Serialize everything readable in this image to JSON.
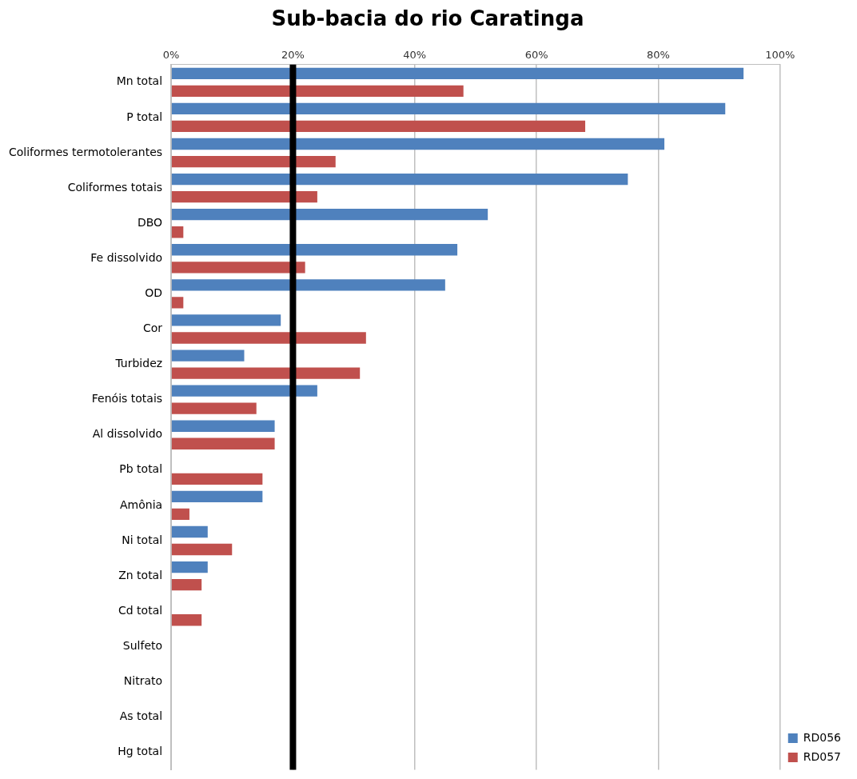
{
  "chart_data": {
    "type": "bar",
    "orientation": "horizontal",
    "title": "Sub-bacia do rio Caratinga",
    "categories": [
      "Mn total",
      "P total",
      "Coliformes termotolerantes",
      "Coliformes totais",
      "DBO",
      "Fe dissolvido",
      "OD",
      "Cor",
      "Turbidez",
      "Fenóis totais",
      "Al dissolvido",
      "Pb total",
      "Amônia",
      "Ni total",
      "Zn total",
      "Cd total",
      "Sulfeto",
      "Nitrato",
      "As total",
      "Hg total"
    ],
    "series": [
      {
        "name": "RD056",
        "color": "#4f81bd",
        "values": [
          94,
          91,
          81,
          75,
          52,
          47,
          45,
          18,
          12,
          24,
          17,
          0,
          15,
          6,
          6,
          0,
          0,
          0,
          0,
          0
        ]
      },
      {
        "name": "RD057",
        "color": "#c0504d",
        "values": [
          48,
          68,
          27,
          24,
          2,
          22,
          2,
          32,
          31,
          14,
          17,
          15,
          3,
          10,
          5,
          5,
          0,
          0,
          0,
          0
        ]
      }
    ],
    "xlim": [
      0,
      100
    ],
    "xticks": [
      {
        "value": 0,
        "label": "0%"
      },
      {
        "value": 20,
        "label": "20%"
      },
      {
        "value": 40,
        "label": "40%"
      },
      {
        "value": 60,
        "label": "60%"
      },
      {
        "value": 80,
        "label": "80%"
      },
      {
        "value": 100,
        "label": "100%"
      }
    ],
    "grid": "x",
    "legend": "bottom right",
    "ref_lines": [
      {
        "axis": "x",
        "value": 20,
        "color": "#000000"
      }
    ]
  }
}
